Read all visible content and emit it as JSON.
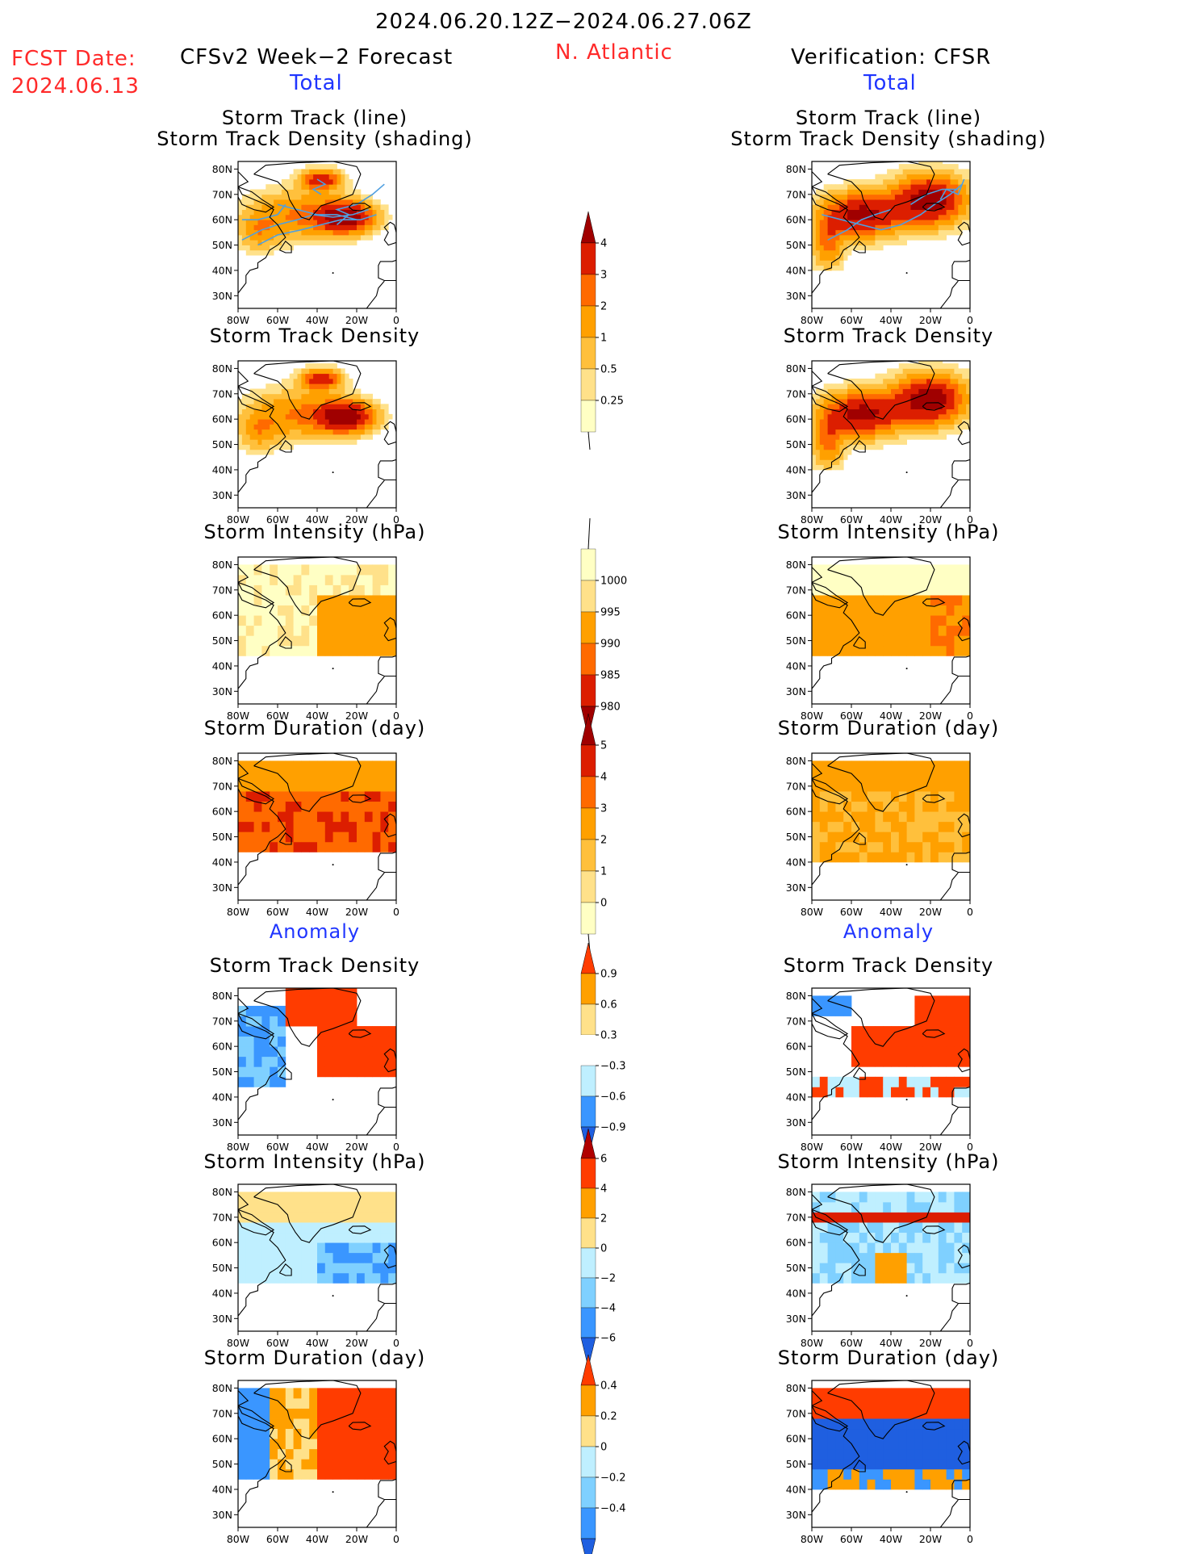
{
  "header": {
    "period": "2024.06.20.12Z−2024.06.27.06Z",
    "fcst_label": "FCST Date:",
    "fcst_date": "2024.06.13",
    "left_title": "CFSv2 Week−2 Forecast",
    "region": "N. Atlantic",
    "right_title": "Verification: CFSR",
    "left_sub": "Total",
    "right_sub": "Total"
  },
  "sections": {
    "anomaly_left": "Anomaly",
    "anomaly_right": "Anomaly"
  },
  "colors": {
    "sequential": [
      "#ffffc4",
      "#ffe18a",
      "#ffc03c",
      "#ffa000",
      "#ff6a00",
      "#dc1e00",
      "#a00000"
    ],
    "diverging_neg": [
      "#bfefff",
      "#7fd0ff",
      "#3a96ff",
      "#1f5fe0"
    ],
    "diverging_pos": [
      "#ffe18a",
      "#ffa000",
      "#ff3c00",
      "#b00000"
    ],
    "track_line": "#4f9fe0"
  },
  "chart_data": [
    {
      "panel": "total-left-1",
      "type": "heatmap",
      "title": "Storm Track (line)",
      "subtitle": "Storm Track Density (shading)",
      "x_ticks": [
        "80W",
        "60W",
        "40W",
        "20W",
        "0"
      ],
      "y_ticks": [
        "80N",
        "70N",
        "60N",
        "50N",
        "40N",
        "30N"
      ],
      "xlim": [
        -80,
        0
      ],
      "ylim": [
        25,
        83
      ],
      "hotspots": [
        {
          "lon": -25,
          "lat": 60,
          "level": 6
        },
        {
          "lon": -40,
          "lat": 75,
          "level": 5
        }
      ]
    },
    {
      "panel": "total-right-1",
      "type": "heatmap",
      "title": "Storm Track (line)",
      "subtitle": "Storm Track Density (shading)",
      "x_ticks": [
        "80W",
        "60W",
        "40W",
        "20W",
        "0"
      ],
      "y_ticks": [
        "80N",
        "70N",
        "60N",
        "50N",
        "40N",
        "30N"
      ],
      "xlim": [
        -80,
        0
      ],
      "ylim": [
        25,
        83
      ]
    },
    {
      "panel": "total-left-2",
      "type": "heatmap",
      "title": "Storm Track Density",
      "x_ticks": [
        "80W",
        "60W",
        "40W",
        "20W",
        "0"
      ],
      "y_ticks": [
        "80N",
        "70N",
        "60N",
        "50N",
        "40N",
        "30N"
      ],
      "xlim": [
        -80,
        0
      ],
      "ylim": [
        25,
        83
      ]
    },
    {
      "panel": "total-right-2",
      "type": "heatmap",
      "title": "Storm Track Density",
      "x_ticks": [
        "80W",
        "60W",
        "40W",
        "20W",
        "0"
      ],
      "y_ticks": [
        "80N",
        "70N",
        "60N",
        "50N",
        "40N",
        "30N"
      ],
      "xlim": [
        -80,
        0
      ],
      "ylim": [
        25,
        83
      ]
    },
    {
      "panel": "total-left-3",
      "type": "heatmap",
      "title": "Storm Intensity (hPa)",
      "x_ticks": [
        "80W",
        "60W",
        "40W",
        "20W",
        "0"
      ],
      "y_ticks": [
        "80N",
        "70N",
        "60N",
        "50N",
        "40N",
        "30N"
      ],
      "xlim": [
        -80,
        0
      ],
      "ylim": [
        25,
        83
      ]
    },
    {
      "panel": "total-right-3",
      "type": "heatmap",
      "title": "Storm Intensity (hPa)",
      "x_ticks": [
        "80W",
        "60W",
        "40W",
        "20W",
        "0"
      ],
      "y_ticks": [
        "80N",
        "70N",
        "60N",
        "50N",
        "40N",
        "30N"
      ],
      "xlim": [
        -80,
        0
      ],
      "ylim": [
        25,
        83
      ]
    },
    {
      "panel": "total-left-4",
      "type": "heatmap",
      "title": "Storm Duration (day)",
      "x_ticks": [
        "80W",
        "60W",
        "40W",
        "20W",
        "0"
      ],
      "y_ticks": [
        "80N",
        "70N",
        "60N",
        "50N",
        "40N",
        "30N"
      ],
      "xlim": [
        -80,
        0
      ],
      "ylim": [
        25,
        83
      ]
    },
    {
      "panel": "total-right-4",
      "type": "heatmap",
      "title": "Storm Duration (day)",
      "x_ticks": [
        "80W",
        "60W",
        "40W",
        "20W",
        "0"
      ],
      "y_ticks": [
        "80N",
        "70N",
        "60N",
        "50N",
        "40N",
        "30N"
      ],
      "xlim": [
        -80,
        0
      ],
      "ylim": [
        25,
        83
      ]
    },
    {
      "panel": "anom-left-1",
      "type": "heatmap",
      "title": "Storm Track Density",
      "x_ticks": [
        "80W",
        "60W",
        "40W",
        "20W",
        "0"
      ],
      "y_ticks": [
        "80N",
        "70N",
        "60N",
        "50N",
        "40N",
        "30N"
      ],
      "xlim": [
        -80,
        0
      ],
      "ylim": [
        25,
        83
      ]
    },
    {
      "panel": "anom-right-1",
      "type": "heatmap",
      "title": "Storm Track Density",
      "x_ticks": [
        "80W",
        "60W",
        "40W",
        "20W",
        "0"
      ],
      "y_ticks": [
        "80N",
        "70N",
        "60N",
        "50N",
        "40N",
        "30N"
      ],
      "xlim": [
        -80,
        0
      ],
      "ylim": [
        25,
        83
      ]
    },
    {
      "panel": "anom-left-2",
      "type": "heatmap",
      "title": "Storm Intensity (hPa)",
      "x_ticks": [
        "80W",
        "60W",
        "40W",
        "20W",
        "0"
      ],
      "y_ticks": [
        "80N",
        "70N",
        "60N",
        "50N",
        "40N",
        "30N"
      ],
      "xlim": [
        -80,
        0
      ],
      "ylim": [
        25,
        83
      ]
    },
    {
      "panel": "anom-right-2",
      "type": "heatmap",
      "title": "Storm Intensity (hPa)",
      "x_ticks": [
        "80W",
        "60W",
        "40W",
        "20W",
        "0"
      ],
      "y_ticks": [
        "80N",
        "70N",
        "60N",
        "50N",
        "40N",
        "30N"
      ],
      "xlim": [
        -80,
        0
      ],
      "ylim": [
        25,
        83
      ]
    },
    {
      "panel": "anom-left-3",
      "type": "heatmap",
      "title": "Storm Duration (day)",
      "x_ticks": [
        "80W",
        "60W",
        "40W",
        "20W",
        "0"
      ],
      "y_ticks": [
        "80N",
        "70N",
        "60N",
        "50N",
        "40N",
        "30N"
      ],
      "xlim": [
        -80,
        0
      ],
      "ylim": [
        25,
        83
      ]
    },
    {
      "panel": "anom-right-3",
      "type": "heatmap",
      "title": "Storm Duration (day)",
      "x_ticks": [
        "80W",
        "60W",
        "40W",
        "20W",
        "0"
      ],
      "y_ticks": [
        "80N",
        "70N",
        "60N",
        "50N",
        "40N",
        "30N"
      ],
      "xlim": [
        -80,
        0
      ],
      "ylim": [
        25,
        83
      ]
    }
  ],
  "colorbars": [
    {
      "name": "track-density",
      "labels": [
        "4",
        "3",
        "2",
        "1",
        "0.5",
        "0.25"
      ],
      "colors": [
        "#a00000",
        "#dc1e00",
        "#ff6a00",
        "#ffa000",
        "#ffc03c",
        "#ffe18a",
        "#ffffc4"
      ],
      "top_arrow": true,
      "bottom_arrow": false
    },
    {
      "name": "intensity",
      "labels": [
        "1000",
        "995",
        "990",
        "985",
        "980"
      ],
      "colors": [
        "#ffffc4",
        "#ffe18a",
        "#ffa000",
        "#ff6a00",
        "#dc1e00",
        "#a00000"
      ],
      "top_arrow": false,
      "bottom_arrow": true
    },
    {
      "name": "duration",
      "labels": [
        "5",
        "4",
        "3",
        "2",
        "1",
        "0"
      ],
      "colors": [
        "#a00000",
        "#dc1e00",
        "#ff6a00",
        "#ffa000",
        "#ffc03c",
        "#ffe18a",
        "#ffffc4"
      ],
      "top_arrow": true,
      "bottom_arrow": false
    },
    {
      "name": "anom-track-density",
      "labels": [
        "0.9",
        "0.6",
        "0.3",
        "−0.3",
        "−0.6",
        "−0.9"
      ],
      "colors": [
        "#ff3c00",
        "#ffa000",
        "#ffe18a",
        "#ffffff",
        "#bfefff",
        "#3a96ff",
        "#1f5fe0"
      ],
      "top_arrow": true,
      "bottom_arrow": true
    },
    {
      "name": "anom-intensity",
      "labels": [
        "6",
        "4",
        "2",
        "0",
        "−2",
        "−4",
        "−6"
      ],
      "colors": [
        "#b00000",
        "#ff3c00",
        "#ffa000",
        "#ffe18a",
        "#bfefff",
        "#7fd0ff",
        "#3a96ff",
        "#1f5fe0"
      ],
      "top_arrow": true,
      "bottom_arrow": true
    },
    {
      "name": "anom-duration",
      "labels": [
        "0.4",
        "0.2",
        "0",
        "−0.2",
        "−0.4"
      ],
      "colors": [
        "#ff3c00",
        "#ffa000",
        "#ffe18a",
        "#bfefff",
        "#7fd0ff",
        "#3a96ff",
        "#1f5fe0"
      ],
      "top_arrow": true,
      "bottom_arrow": true
    }
  ]
}
